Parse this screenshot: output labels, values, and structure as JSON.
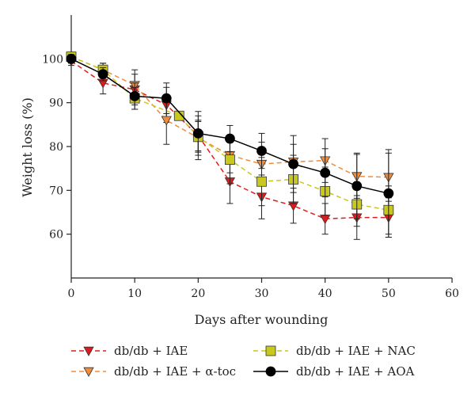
{
  "chart_data": {
    "type": "line",
    "xlabel": "Days after wounding",
    "ylabel": "Weight loss (%)",
    "xlim": [
      0,
      60
    ],
    "ylim": [
      50,
      110
    ],
    "x_ticks": [
      "0",
      "10",
      "20",
      "30",
      "40",
      "50",
      "60"
    ],
    "y_ticks": [
      "60",
      "70",
      "80",
      "90",
      "100"
    ],
    "grid": false,
    "legend_position": "bottom",
    "series": [
      {
        "name": "db/db + IAE",
        "color": "#e31a1c",
        "line_style": "dashed",
        "marker": "triangle-down",
        "x": [
          0,
          5,
          10,
          15,
          20,
          25,
          30,
          35,
          40,
          45,
          50
        ],
        "y": [
          99.5,
          94.5,
          93.0,
          89.5,
          82.5,
          72.0,
          68.5,
          66.5,
          63.5,
          63.8,
          63.8
        ],
        "err": [
          1.0,
          2.5,
          3.5,
          4.0,
          5.5,
          5.0,
          5.0,
          4.0,
          3.5,
          5.0,
          4.5
        ]
      },
      {
        "name": "db/db + IAE + α-toc",
        "color": "#f08c3a",
        "line_style": "dashed",
        "marker": "triangle-down",
        "x": [
          0,
          5,
          10,
          15,
          20,
          25,
          30,
          35,
          40,
          45,
          50
        ],
        "y": [
          100.5,
          97.5,
          94.0,
          86.0,
          82.0,
          78.0,
          76.0,
          76.5,
          76.8,
          73.2,
          73.0
        ],
        "err": [
          1.0,
          1.5,
          3.5,
          5.5,
          4.0,
          4.0,
          5.0,
          4.0,
          5.0,
          5.0,
          5.5
        ]
      },
      {
        "name": "db/db + IAE + NAC",
        "color": "#c8c81e",
        "line_style": "dashed",
        "marker": "square",
        "x": [
          0,
          5,
          10,
          17,
          20,
          25,
          30,
          35,
          40,
          45,
          50
        ],
        "y": [
          100.5,
          97.5,
          91.0,
          87.0,
          82.2,
          77.0,
          72.0,
          72.5,
          69.8,
          66.8,
          65.5
        ],
        "err": [
          1.0,
          1.5,
          2.5,
          1.0,
          3.5,
          5.5,
          5.5,
          5.5,
          5.5,
          5.0,
          5.5
        ]
      },
      {
        "name": "db/db + IAE + AOA",
        "color": "#000000",
        "line_style": "solid",
        "marker": "circle",
        "x": [
          0,
          5,
          10,
          15,
          20,
          25,
          30,
          35,
          40,
          45,
          50
        ],
        "y": [
          100.0,
          96.5,
          91.5,
          91.0,
          83.0,
          81.8,
          79.0,
          76.0,
          74.0,
          71.0,
          69.3
        ],
        "err": [
          1.0,
          1.5,
          3.0,
          3.5,
          4.0,
          3.0,
          4.0,
          6.5,
          5.5,
          7.5,
          10.0
        ]
      }
    ]
  }
}
